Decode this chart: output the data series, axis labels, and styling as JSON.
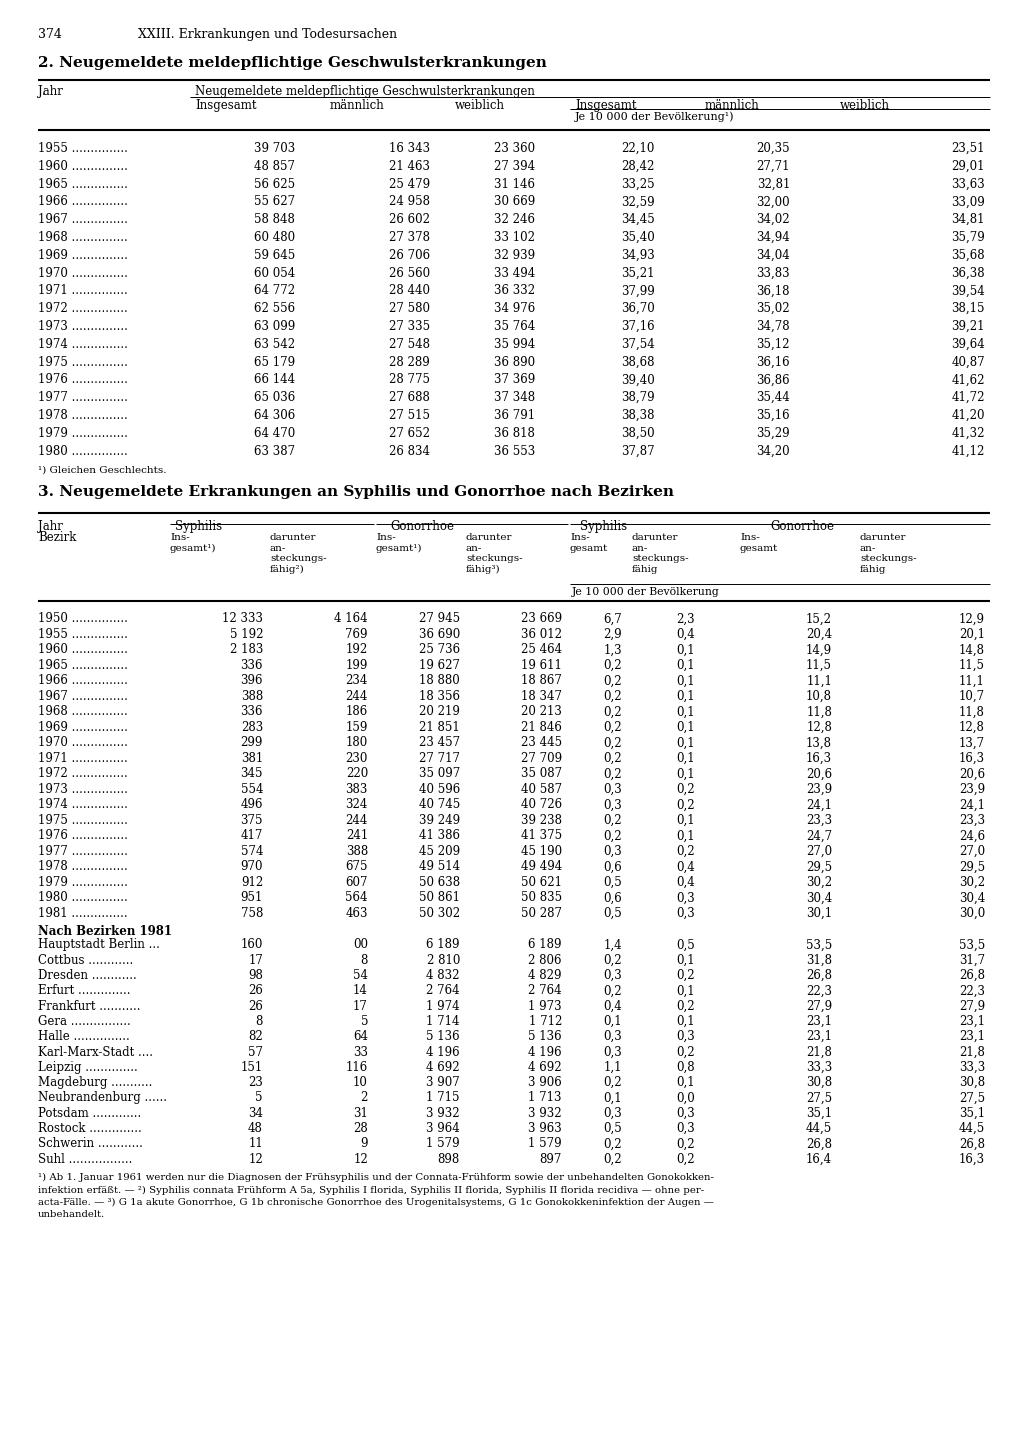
{
  "page_num": "374",
  "chapter": "XXIII. Erkrankungen und Todesursachen",
  "section2_title": "2. Neugemeldete meldepflichtige Geschwulsterkrankungen",
  "section3_title": "3. Neugemeldete Erkrankungen an Syphilis und Gonorrhoe nach Bezirken",
  "table1_footnote": "¹) Gleichen Geschlechts.",
  "table1_data": [
    [
      "1955",
      "39 703",
      "16 343",
      "23 360",
      "22,10",
      "20,35",
      "23,51"
    ],
    [
      "1960",
      "48 857",
      "21 463",
      "27 394",
      "28,42",
      "27,71",
      "29,01"
    ],
    [
      "1965",
      "56 625",
      "25 479",
      "31 146",
      "33,25",
      "32,81",
      "33,63"
    ],
    [
      "1966",
      "55 627",
      "24 958",
      "30 669",
      "32,59",
      "32,00",
      "33,09"
    ],
    [
      "1967",
      "58 848",
      "26 602",
      "32 246",
      "34,45",
      "34,02",
      "34,81"
    ],
    [
      "1968",
      "60 480",
      "27 378",
      "33 102",
      "35,40",
      "34,94",
      "35,79"
    ],
    [
      "1969",
      "59 645",
      "26 706",
      "32 939",
      "34,93",
      "34,04",
      "35,68"
    ],
    [
      "1970",
      "60 054",
      "26 560",
      "33 494",
      "35,21",
      "33,83",
      "36,38"
    ],
    [
      "1971",
      "64 772",
      "28 440",
      "36 332",
      "37,99",
      "36,18",
      "39,54"
    ],
    [
      "1972",
      "62 556",
      "27 580",
      "34 976",
      "36,70",
      "35,02",
      "38,15"
    ],
    [
      "1973",
      "63 099",
      "27 335",
      "35 764",
      "37,16",
      "34,78",
      "39,21"
    ],
    [
      "1974",
      "63 542",
      "27 548",
      "35 994",
      "37,54",
      "35,12",
      "39,64"
    ],
    [
      "1975",
      "65 179",
      "28 289",
      "36 890",
      "38,68",
      "36,16",
      "40,87"
    ],
    [
      "1976",
      "66 144",
      "28 775",
      "37 369",
      "39,40",
      "36,86",
      "41,62"
    ],
    [
      "1977",
      "65 036",
      "27 688",
      "37 348",
      "38,79",
      "35,44",
      "41,72"
    ],
    [
      "1978",
      "64 306",
      "27 515",
      "36 791",
      "38,38",
      "35,16",
      "41,20"
    ],
    [
      "1979",
      "64 470",
      "27 652",
      "36 818",
      "38,50",
      "35,29",
      "41,32"
    ],
    [
      "1980",
      "63 387",
      "26 834",
      "36 553",
      "37,87",
      "34,20",
      "41,12"
    ]
  ],
  "table2_data": [
    [
      "1950",
      "12 333",
      "4 164",
      "27 945",
      "23 669",
      "6,7",
      "2,3",
      "15,2",
      "12,9"
    ],
    [
      "1955",
      "5 192",
      "769",
      "36 690",
      "36 012",
      "2,9",
      "0,4",
      "20,4",
      "20,1"
    ],
    [
      "1960",
      "2 183",
      "192",
      "25 736",
      "25 464",
      "1,3",
      "0,1",
      "14,9",
      "14,8"
    ],
    [
      "1965",
      "336",
      "199",
      "19 627",
      "19 611",
      "0,2",
      "0,1",
      "11,5",
      "11,5"
    ],
    [
      "1966",
      "396",
      "234",
      "18 880",
      "18 867",
      "0,2",
      "0,1",
      "11,1",
      "11,1"
    ],
    [
      "1967",
      "388",
      "244",
      "18 356",
      "18 347",
      "0,2",
      "0,1",
      "10,8",
      "10,7"
    ],
    [
      "1968",
      "336",
      "186",
      "20 219",
      "20 213",
      "0,2",
      "0,1",
      "11,8",
      "11,8"
    ],
    [
      "1969",
      "283",
      "159",
      "21 851",
      "21 846",
      "0,2",
      "0,1",
      "12,8",
      "12,8"
    ],
    [
      "1970",
      "299",
      "180",
      "23 457",
      "23 445",
      "0,2",
      "0,1",
      "13,8",
      "13,7"
    ],
    [
      "1971",
      "381",
      "230",
      "27 717",
      "27 709",
      "0,2",
      "0,1",
      "16,3",
      "16,3"
    ],
    [
      "1972",
      "345",
      "220",
      "35 097",
      "35 087",
      "0,2",
      "0,1",
      "20,6",
      "20,6"
    ],
    [
      "1973",
      "554",
      "383",
      "40 596",
      "40 587",
      "0,3",
      "0,2",
      "23,9",
      "23,9"
    ],
    [
      "1974",
      "496",
      "324",
      "40 745",
      "40 726",
      "0,3",
      "0,2",
      "24,1",
      "24,1"
    ],
    [
      "1975",
      "375",
      "244",
      "39 249",
      "39 238",
      "0,2",
      "0,1",
      "23,3",
      "23,3"
    ],
    [
      "1976",
      "417",
      "241",
      "41 386",
      "41 375",
      "0,2",
      "0,1",
      "24,7",
      "24,6"
    ],
    [
      "1977",
      "574",
      "388",
      "45 209",
      "45 190",
      "0,3",
      "0,2",
      "27,0",
      "27,0"
    ],
    [
      "1978",
      "970",
      "675",
      "49 514",
      "49 494",
      "0,6",
      "0,4",
      "29,5",
      "29,5"
    ],
    [
      "1979",
      "912",
      "607",
      "50 638",
      "50 621",
      "0,5",
      "0,4",
      "30,2",
      "30,2"
    ],
    [
      "1980",
      "951",
      "564",
      "50 861",
      "50 835",
      "0,6",
      "0,3",
      "30,4",
      "30,4"
    ],
    [
      "1981",
      "758",
      "463",
      "50 302",
      "50 287",
      "0,5",
      "0,3",
      "30,1",
      "30,0"
    ]
  ],
  "table2_bezirk_header": "Nach Bezirken 1981",
  "table2_bezirk": [
    [
      "Hauptstadt Berlin ...",
      "160",
      "00",
      "6 189",
      "6 189",
      "1,4",
      "0,5",
      "53,5",
      "53,5"
    ],
    [
      "Cottbus ............",
      "17",
      "8",
      "2 810",
      "2 806",
      "0,2",
      "0,1",
      "31,8",
      "31,7"
    ],
    [
      "Dresden ............",
      "98",
      "54",
      "4 832",
      "4 829",
      "0,3",
      "0,2",
      "26,8",
      "26,8"
    ],
    [
      "Erfurt ..............",
      "26",
      "14",
      "2 764",
      "2 764",
      "0,2",
      "0,1",
      "22,3",
      "22,3"
    ],
    [
      "Frankfurt ...........",
      "26",
      "17",
      "1 974",
      "1 973",
      "0,4",
      "0,2",
      "27,9",
      "27,9"
    ],
    [
      "Gera ................",
      "8",
      "5",
      "1 714",
      "1 712",
      "0,1",
      "0,1",
      "23,1",
      "23,1"
    ],
    [
      "Halle ...............",
      "82",
      "64",
      "5 136",
      "5 136",
      "0,3",
      "0,3",
      "23,1",
      "23,1"
    ],
    [
      "Karl-Marx-Stadt ....",
      "57",
      "33",
      "4 196",
      "4 196",
      "0,3",
      "0,2",
      "21,8",
      "21,8"
    ],
    [
      "Leipzig ..............",
      "151",
      "116",
      "4 692",
      "4 692",
      "1,1",
      "0,8",
      "33,3",
      "33,3"
    ],
    [
      "Magdeburg ...........",
      "23",
      "10",
      "3 907",
      "3 906",
      "0,2",
      "0,1",
      "30,8",
      "30,8"
    ],
    [
      "Neubrandenburg ......",
      "5",
      "2",
      "1 715",
      "1 713",
      "0,1",
      "0,0",
      "27,5",
      "27,5"
    ],
    [
      "Potsdam .............",
      "34",
      "31",
      "3 932",
      "3 932",
      "0,3",
      "0,3",
      "35,1",
      "35,1"
    ],
    [
      "Rostock ..............",
      "48",
      "28",
      "3 964",
      "3 963",
      "0,5",
      "0,3",
      "44,5",
      "44,5"
    ],
    [
      "Schwerin ............",
      "11",
      "9",
      "1 579",
      "1 579",
      "0,2",
      "0,2",
      "26,8",
      "26,8"
    ],
    [
      "Suhl .................",
      "12",
      "12",
      "898",
      "897",
      "0,2",
      "0,2",
      "16,4",
      "16,3"
    ]
  ],
  "table2_footnotes": [
    "¹) Ab 1. Januar 1961 werden nur die Diagnosen der Frühsyphilis und der Connata-Frühform sowie der unbehandelten Gonokokken-",
    "infektion erfäßt. — ²) Syphilis connata Frühform A 5a, Syphilis I florida, Syphilis II florida, Syphilis II florida recidiva — ohne per-",
    "acta-Fälle. — ³) G 1a akute Gonorrhoe, G 1b chronische Gonorrhoe des Urogenitalsystems, G 1c Gonokokkeninfektion der Augen —",
    "unbehandelt."
  ]
}
